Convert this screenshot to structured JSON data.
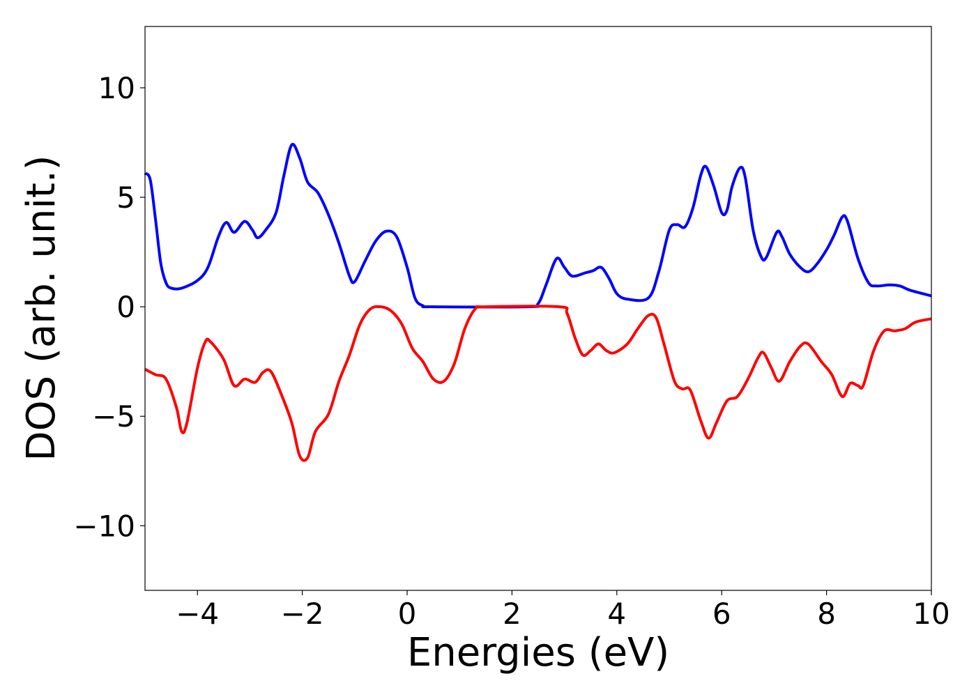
{
  "chart_data": {
    "type": "line",
    "xlabel": "Energies (eV)",
    "ylabel": "DOS (arb. unit.)",
    "xlim": [
      -5,
      10
    ],
    "ylim": [
      -12.95,
      12.8
    ],
    "xticks": [
      {
        "value": -4,
        "label": "−4"
      },
      {
        "value": -2,
        "label": "−2"
      },
      0,
      2,
      4,
      6,
      8,
      10
    ],
    "yticks": [
      {
        "value": -10,
        "label": "−10"
      },
      {
        "value": -5,
        "label": "−5"
      },
      0,
      5,
      10
    ],
    "grid": false,
    "series": [
      {
        "color": "#0000ff",
        "x": [
          -5,
          -4.9,
          -4.8,
          -4.7,
          -4.6,
          -4.5,
          -4.3,
          -4.0,
          -3.8,
          -3.6,
          -3.45,
          -3.3,
          -3.1,
          -2.95,
          -2.85,
          -2.7,
          -2.5,
          -2.35,
          -2.2,
          -2.05,
          -1.9,
          -1.7,
          -1.5,
          -1.3,
          -1.1,
          -1.0,
          -0.8,
          -0.6,
          -0.4,
          -0.2,
          0.0,
          0.15,
          0.3,
          0.5,
          2.3,
          2.5,
          2.65,
          2.85,
          3.0,
          3.15,
          3.4,
          3.55,
          3.7,
          3.85,
          4.0,
          4.2,
          4.6,
          4.8,
          5.0,
          5.15,
          5.3,
          5.45,
          5.6,
          5.7,
          5.85,
          6.0,
          6.1,
          6.2,
          6.35,
          6.45,
          6.6,
          6.75,
          6.85,
          7.05,
          7.15,
          7.3,
          7.5,
          7.65,
          7.8,
          8.0,
          8.15,
          8.3,
          8.4,
          8.6,
          8.8,
          8.95,
          9.2,
          9.4,
          9.6,
          10.0
        ],
        "values": [
          6.1,
          5.8,
          4.0,
          2.0,
          1.1,
          0.85,
          0.85,
          1.2,
          1.8,
          3.2,
          3.85,
          3.4,
          3.9,
          3.5,
          3.15,
          3.5,
          4.3,
          6.0,
          7.4,
          6.8,
          5.7,
          5.2,
          4.2,
          2.9,
          1.4,
          1.15,
          2.1,
          3.0,
          3.45,
          3.2,
          1.8,
          0.4,
          0.05,
          0,
          0,
          0.15,
          1.0,
          2.2,
          1.8,
          1.4,
          1.55,
          1.65,
          1.8,
          1.3,
          0.6,
          0.35,
          0.4,
          1.6,
          3.5,
          3.75,
          3.65,
          4.5,
          6.0,
          6.4,
          5.5,
          4.3,
          4.4,
          5.5,
          6.35,
          5.9,
          3.5,
          2.3,
          2.25,
          3.4,
          3.2,
          2.4,
          1.8,
          1.6,
          1.9,
          2.6,
          3.3,
          4.1,
          3.9,
          2.2,
          1.1,
          0.95,
          1.0,
          0.95,
          0.75,
          0.5
        ]
      },
      {
        "color": "#ff0000",
        "x": [
          -5,
          -4.8,
          -4.6,
          -4.4,
          -4.3,
          -4.2,
          -4.0,
          -3.85,
          -3.75,
          -3.5,
          -3.3,
          -3.1,
          -2.9,
          -2.75,
          -2.6,
          -2.4,
          -2.2,
          -2.05,
          -1.9,
          -1.75,
          -1.5,
          -1.3,
          -1.1,
          -0.9,
          -0.7,
          -0.5,
          -0.3,
          -0.1,
          0.1,
          0.3,
          0.5,
          0.7,
          0.9,
          1.1,
          1.3,
          1.5,
          2.9,
          3.05,
          3.2,
          3.35,
          3.5,
          3.65,
          3.8,
          3.95,
          4.2,
          4.4,
          4.6,
          4.75,
          4.9,
          5.1,
          5.25,
          5.4,
          5.6,
          5.75,
          5.9,
          6.1,
          6.3,
          6.5,
          6.7,
          6.8,
          6.95,
          7.1,
          7.3,
          7.5,
          7.65,
          7.9,
          8.1,
          8.3,
          8.45,
          8.6,
          8.7,
          8.9,
          9.1,
          9.3,
          9.5,
          9.7,
          10.0
        ],
        "values": [
          -2.85,
          -3.1,
          -3.3,
          -4.6,
          -5.7,
          -5.3,
          -2.8,
          -1.6,
          -1.6,
          -2.4,
          -3.6,
          -3.3,
          -3.45,
          -3.0,
          -2.95,
          -4.0,
          -5.3,
          -6.8,
          -6.9,
          -5.7,
          -4.9,
          -3.4,
          -2.2,
          -0.8,
          -0.1,
          0,
          -0.2,
          -0.8,
          -1.9,
          -2.5,
          -3.3,
          -3.4,
          -2.6,
          -1.0,
          -0.1,
          0,
          0,
          -0.3,
          -1.4,
          -2.2,
          -2.0,
          -1.7,
          -2.0,
          -2.1,
          -1.7,
          -1.0,
          -0.4,
          -0.5,
          -1.7,
          -3.4,
          -3.75,
          -3.8,
          -5.2,
          -6.0,
          -5.3,
          -4.3,
          -4.1,
          -3.3,
          -2.3,
          -2.1,
          -2.8,
          -3.4,
          -2.5,
          -1.8,
          -1.7,
          -2.5,
          -3.1,
          -4.1,
          -3.5,
          -3.6,
          -3.6,
          -2.0,
          -1.1,
          -1.1,
          -1.0,
          -0.7,
          -0.55
        ]
      }
    ]
  }
}
